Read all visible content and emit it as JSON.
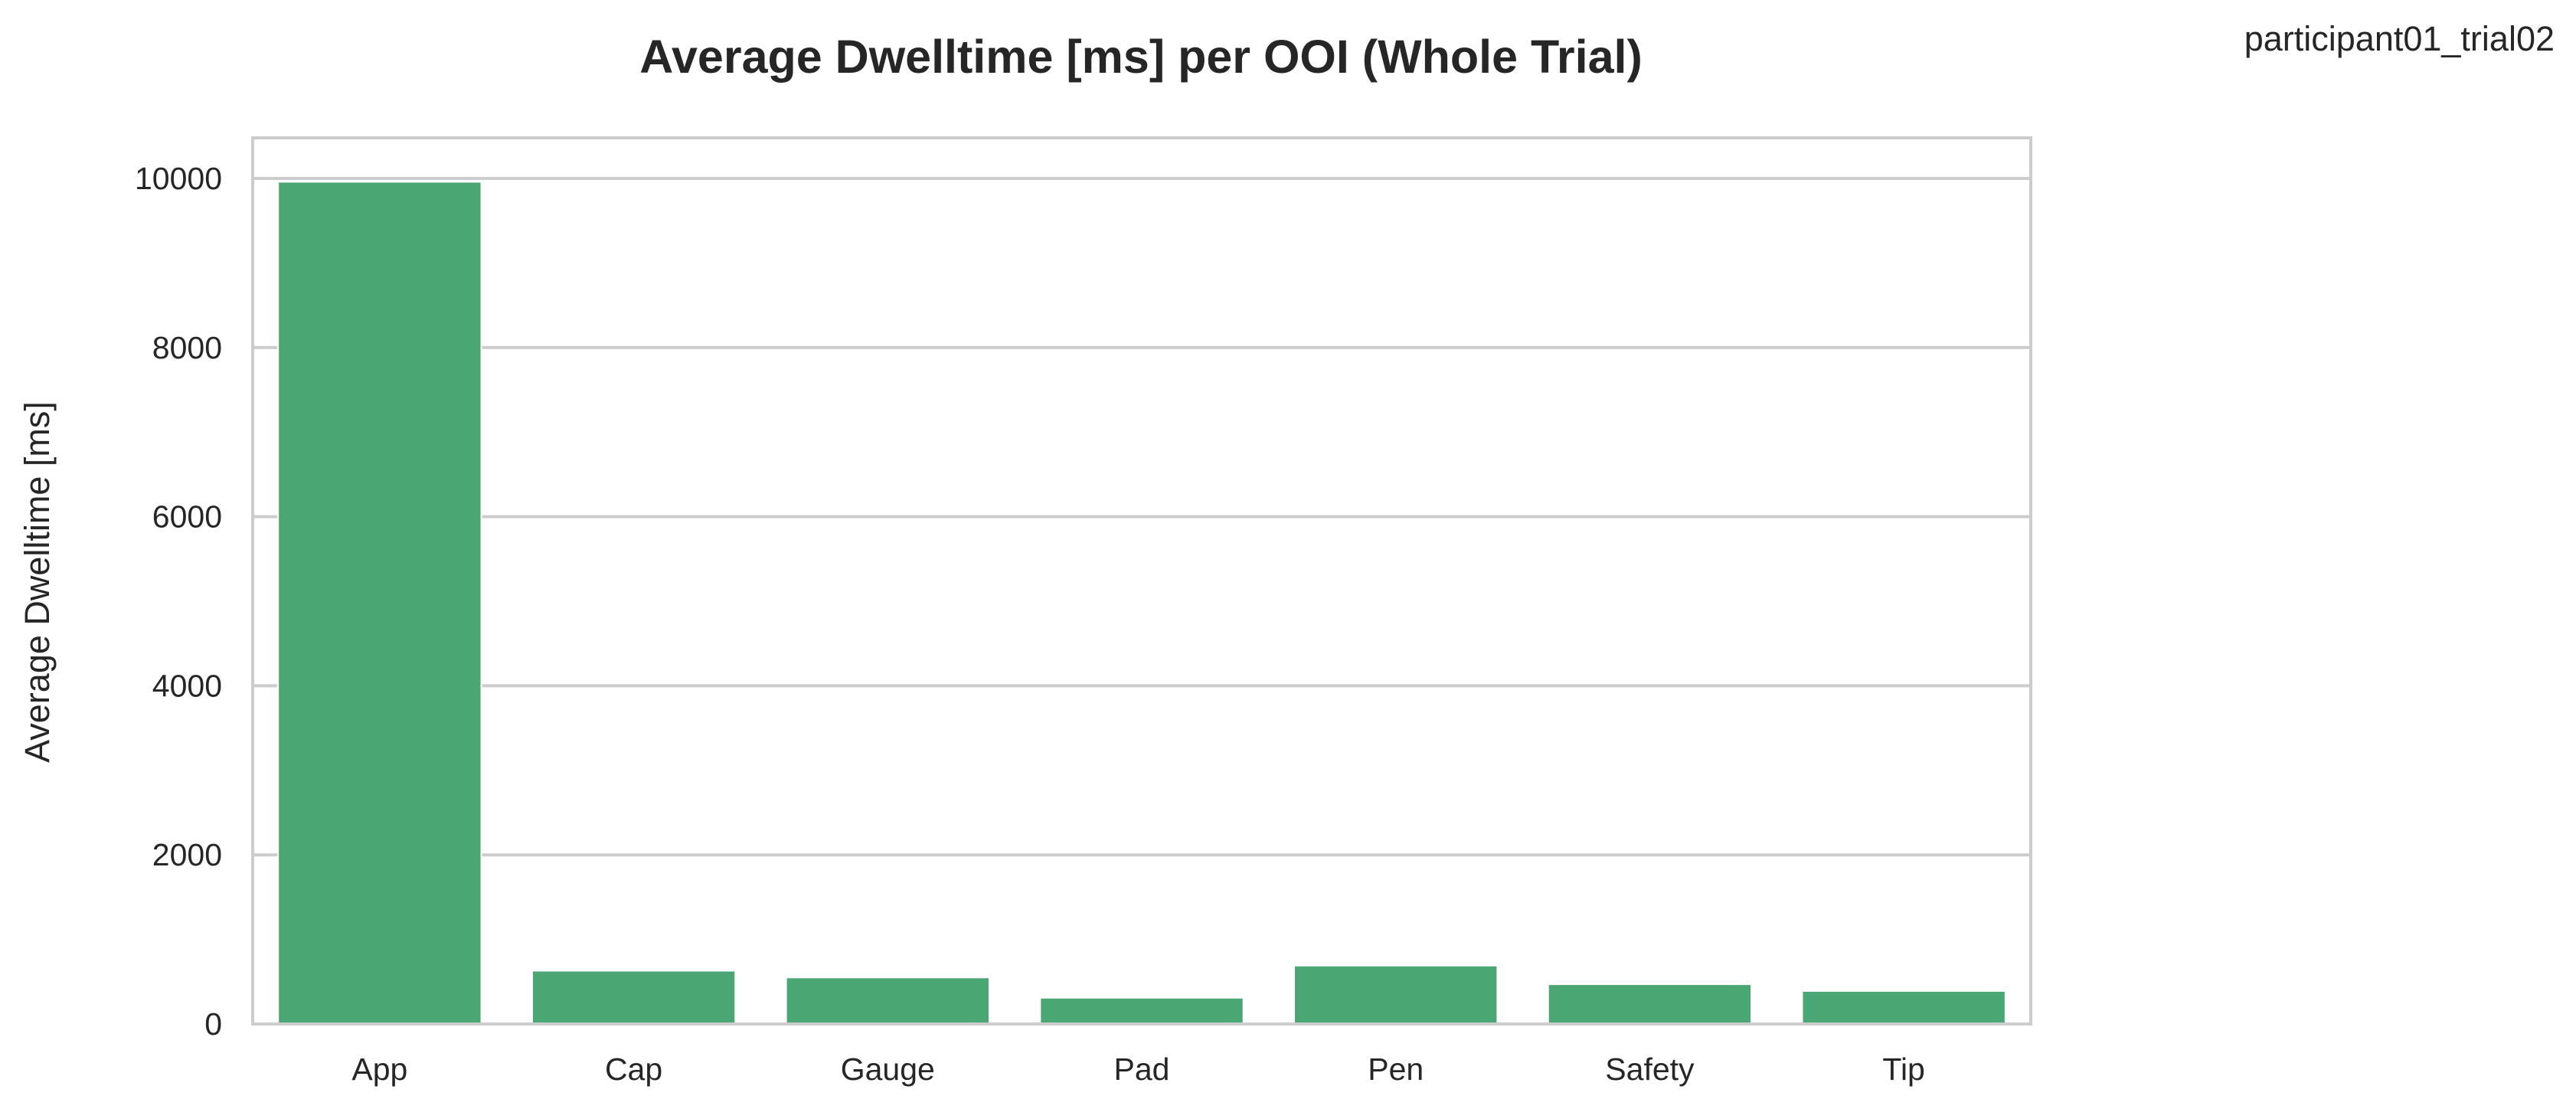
{
  "header": {
    "corner_label": "participant01_trial02"
  },
  "chart_data": {
    "type": "bar",
    "title": "Average Dwelltime [ms] per OOI (Whole Trial)",
    "xlabel": "",
    "ylabel": "Average Dwelltime [ms]",
    "categories": [
      "App",
      "Cap",
      "Gauge",
      "Pad",
      "Pen",
      "Safety",
      "Tip"
    ],
    "values": [
      9960,
      630,
      550,
      310,
      690,
      470,
      390
    ],
    "ylim": [
      0,
      10480
    ],
    "yticks": [
      0,
      2000,
      4000,
      6000,
      8000,
      10000
    ],
    "grid": true,
    "grid_axis": "y",
    "bar_color": "#4aa673",
    "grid_color": "#cccccc",
    "frame_color": "#cccccc"
  }
}
